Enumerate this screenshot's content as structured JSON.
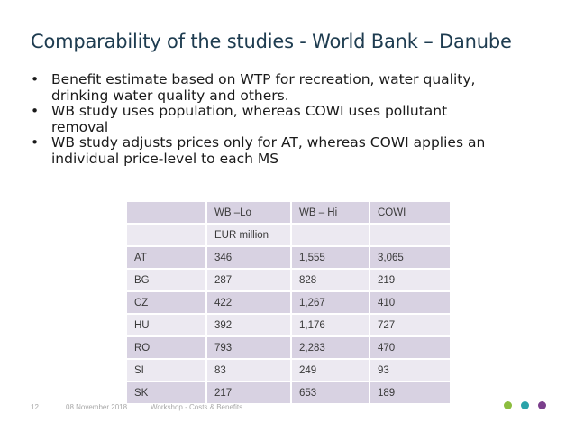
{
  "slide": {
    "title": "Comparability of the studies - World Bank – Danube",
    "bullet_char": "•",
    "bullets": [
      {
        "line1": "Benefit estimate based on WTP for recreation, water quality,",
        "line2": "drinking water quality and others."
      },
      {
        "line1": "WB study uses population, whereas COWI uses pollutant",
        "line2": "removal"
      },
      {
        "line1": "WB study adjusts prices only for AT, whereas COWI applies an",
        "line2": "individual price-level to each MS"
      }
    ]
  },
  "table": {
    "header": [
      "",
      "WB –Lo",
      "WB – Hi",
      "COWI"
    ],
    "unit": "EUR million",
    "rows": [
      [
        "AT",
        "346",
        "1,555",
        "3,065"
      ],
      [
        "BG",
        "287",
        "828",
        "219"
      ],
      [
        "CZ",
        "422",
        "1,267",
        "410"
      ],
      [
        "HU",
        "392",
        "1,176",
        "727"
      ],
      [
        "RO",
        "793",
        "2,283",
        "470"
      ],
      [
        "SI",
        "83",
        "249",
        "93"
      ],
      [
        "SK",
        "217",
        "653",
        "189"
      ]
    ]
  },
  "footer": {
    "page_number": "12",
    "date": "08 November 2018",
    "workshop": "Workshop - Costs & Benefits"
  },
  "colors": {
    "title": "#1e3c50",
    "row_dark": "#d8d2e2",
    "row_light": "#ece9f1",
    "dot_green": "#8cbd3f",
    "dot_teal": "#2aa3a9",
    "dot_purple": "#7b3f8c"
  }
}
